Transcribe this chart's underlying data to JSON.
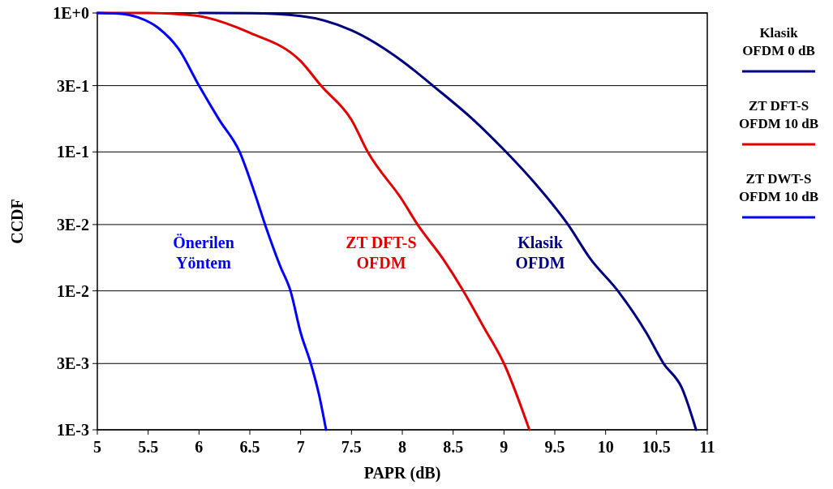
{
  "chart_data": {
    "type": "line",
    "xlabel": "PAPR (dB)",
    "ylabel": "CCDF",
    "log": "y",
    "grid": "y",
    "legend": "right",
    "line_style": "solid",
    "xlim": [
      5,
      11
    ],
    "xticks": [
      5,
      5.5,
      6,
      6.5,
      7,
      7.5,
      8,
      8.5,
      9,
      9.5,
      10,
      10.5,
      11
    ],
    "ylim": [
      0.001,
      1
    ],
    "yticks": [
      {
        "value": 1,
        "label": "1E+0"
      },
      {
        "value": 0.3,
        "label": "3E-1"
      },
      {
        "value": 0.1,
        "label": "1E-1"
      },
      {
        "value": 0.03,
        "label": "3E-2"
      },
      {
        "value": 0.01,
        "label": "1E-2"
      },
      {
        "value": 0.003,
        "label": "3E-3"
      },
      {
        "value": 0.001,
        "label": "1E-3"
      }
    ],
    "series": [
      {
        "name": "Klasik\nOFDM 0 dB",
        "color": "#000080",
        "x": [
          6,
          6.5,
          7,
          7.5,
          8,
          8.3,
          8.7,
          9.02,
          9.3,
          9.63,
          9.85,
          10.12,
          10.4,
          10.57,
          10.75,
          10.89
        ],
        "values": [
          1,
          0.995,
          0.95,
          0.75,
          0.45,
          0.3,
          0.17,
          0.1,
          0.06,
          0.03,
          0.017,
          0.01,
          0.005,
          0.003,
          0.002,
          0.001
        ]
      },
      {
        "name": "ZT DFT-S\nOFDM 10 dB",
        "color": "#e00000",
        "x": [
          5,
          5.5,
          5.8,
          6,
          6.5,
          7,
          7.2,
          7.5,
          7.66,
          8,
          8.15,
          8.4,
          8.6,
          8.8,
          9,
          9.25
        ],
        "values": [
          1,
          1,
          0.98,
          0.95,
          0.72,
          0.45,
          0.3,
          0.17,
          0.1,
          0.045,
          0.03,
          0.017,
          0.01,
          0.0055,
          0.003,
          0.001
        ]
      },
      {
        "name": "ZT DWT-S\nOFDM 10 dB",
        "color": "#0000ff",
        "x": [
          5,
          5.2,
          5.4,
          5.6,
          5.8,
          6,
          6.2,
          6.4,
          6.55,
          6.65,
          6.8,
          6.9,
          7,
          7.1,
          7.18,
          7.25
        ],
        "values": [
          1,
          0.99,
          0.93,
          0.78,
          0.55,
          0.3,
          0.17,
          0.1,
          0.05,
          0.03,
          0.015,
          0.01,
          0.005,
          0.003,
          0.0018,
          0.001
        ]
      }
    ],
    "annotations": [
      "Klasik\nOFDM",
      "ZT DFT-S\nOFDM",
      "Önerilen\nYöntem"
    ]
  }
}
